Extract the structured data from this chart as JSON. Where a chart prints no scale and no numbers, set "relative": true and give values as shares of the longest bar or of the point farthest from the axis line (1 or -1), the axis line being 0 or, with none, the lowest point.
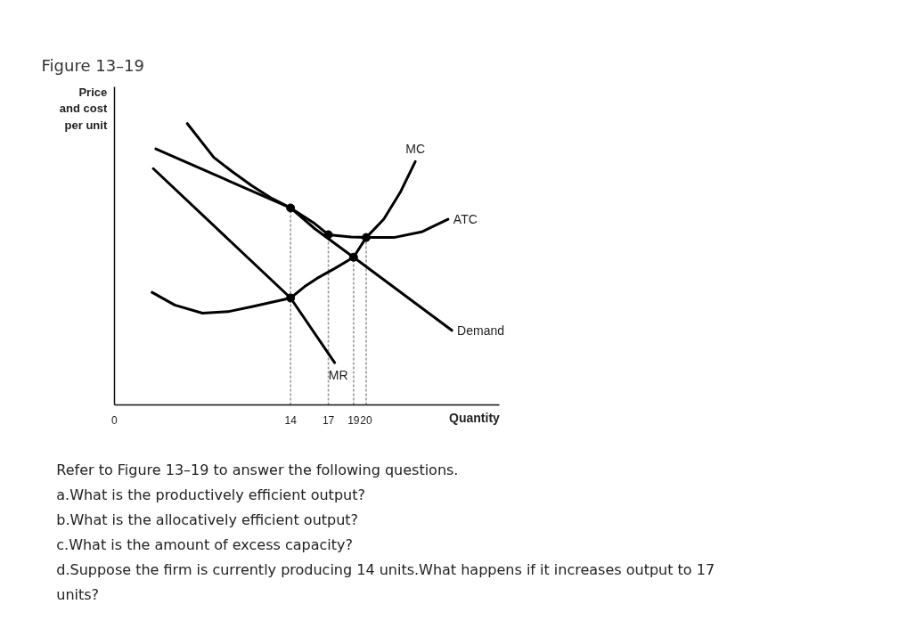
{
  "chart_data": {
    "type": "line",
    "title": "Figure 13–19",
    "xlabel": "Quantity",
    "ylabel": "Price and cost per unit",
    "relative": true,
    "xlim": [
      0,
      30.6
    ],
    "xticks": [
      0,
      14,
      17,
      19,
      20
    ],
    "series": [
      {
        "name": "MC",
        "color": "#000000",
        "x": [
          3.0,
          4.8,
          7.0,
          9.1,
          11.0,
          14,
          15.1,
          16.1,
          17.5,
          19,
          20,
          21.4,
          22.7,
          23.9
        ],
        "values": [
          0.4,
          0.355,
          0.326,
          0.332,
          0.35,
          0.38,
          0.42,
          0.45,
          0.485,
          0.525,
          0.595,
          0.66,
          0.755,
          0.865
        ]
      },
      {
        "name": "ATC",
        "color": "#000000",
        "x": [
          5.8,
          7.9,
          9.4,
          10.9,
          12.4,
          14,
          15.9,
          17,
          18.8,
          20,
          22.2,
          24.4,
          26.5
        ],
        "values": [
          1.0,
          0.88,
          0.828,
          0.78,
          0.737,
          0.7,
          0.645,
          0.605,
          0.597,
          0.595,
          0.595,
          0.615,
          0.66
        ]
      },
      {
        "name": "Demand",
        "color": "#000000",
        "x": [
          3.3,
          14,
          15.9,
          19,
          26.8
        ],
        "values": [
          0.91,
          0.7,
          0.627,
          0.525,
          0.265
        ]
      },
      {
        "name": "MR",
        "color": "#000000",
        "x": [
          3.1,
          14,
          17.5
        ],
        "values": [
          0.84,
          0.38,
          0.15
        ]
      },
      {
        "type": "line",
        "line_style": "dotted",
        "color": "#999999",
        "x": [
          14,
          14
        ],
        "values": [
          0,
          0.7
        ]
      },
      {
        "type": "line",
        "line_style": "dotted",
        "color": "#999999",
        "x": [
          17,
          17
        ],
        "values": [
          0,
          0.605
        ]
      },
      {
        "type": "line",
        "line_style": "dotted",
        "color": "#999999",
        "x": [
          19,
          19
        ],
        "values": [
          0,
          0.525
        ]
      },
      {
        "type": "line",
        "line_style": "dotted",
        "color": "#999999",
        "x": [
          20,
          20
        ],
        "values": [
          0,
          0.595
        ]
      },
      {
        "type": "scatter",
        "marker": "circle",
        "color": "#000000",
        "x": [
          14,
          14,
          17,
          19,
          20
        ],
        "values": [
          0.7,
          0.38,
          0.605,
          0.525,
          0.595
        ]
      }
    ],
    "annotations": [
      "Refer to Figure 13–19 to answer the following questions.",
      "a.What is the productively efficient output?",
      "b.What is the allocatively efficient output?",
      "c.What is the amount of excess capacity?",
      "d.Suppose the firm is currently producing 14 units.What happens if it increases output to 17 units?"
    ]
  }
}
